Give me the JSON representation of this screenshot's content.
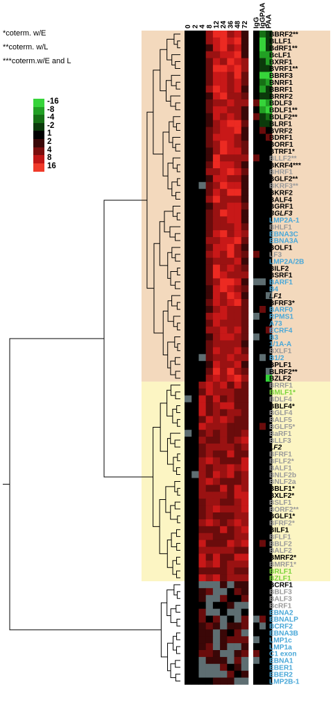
{
  "notes": [
    "*coterm. w/E",
    "**coterm. w/L",
    "***coterm.w/E and L"
  ],
  "legend": {
    "labels": [
      "-16",
      "-8",
      "-4",
      "-2",
      "1",
      "2",
      "4",
      "8",
      "16"
    ],
    "colors": [
      "#36d43a",
      "#22a024",
      "#167015",
      "#0b3a0b",
      "#000000",
      "#3a0707",
      "#7a0e0e",
      "#c01616",
      "#f03a2a"
    ]
  },
  "columns": {
    "timecourse": [
      "0",
      "2",
      "4",
      "8",
      "12",
      "24",
      "36",
      "48",
      "72"
    ],
    "extra": [
      "IgG",
      "IgGPAA",
      "PAA"
    ]
  },
  "colors": {
    "cluster_early_bg": "#f3d9bd",
    "cluster_late_bg": "#fcf5c3",
    "label_black": "#000000",
    "label_gray": "#9a9a9a",
    "label_blue": "#4aa8d8",
    "label_green": "#7ad43a"
  },
  "genes": [
    {
      "name": "BBRF2**",
      "color": "black",
      "italic": false
    },
    {
      "name": "BLLF1",
      "color": "black",
      "italic": false
    },
    {
      "name": "BdRF1**",
      "color": "black",
      "italic": false
    },
    {
      "name": "BcLF1",
      "color": "black",
      "italic": false
    },
    {
      "name": "BXRF1",
      "color": "black",
      "italic": false
    },
    {
      "name": "BVRF1**",
      "color": "black",
      "italic": false
    },
    {
      "name": "BBRF3",
      "color": "black",
      "italic": false
    },
    {
      "name": "BNRF1",
      "color": "black",
      "italic": false
    },
    {
      "name": "BBRF1",
      "color": "black",
      "italic": false
    },
    {
      "name": "BRRF2",
      "color": "black",
      "italic": false
    },
    {
      "name": "BDLF3",
      "color": "black",
      "italic": false
    },
    {
      "name": "BDLF1**",
      "color": "black",
      "italic": false
    },
    {
      "name": "BDLF2**",
      "color": "black",
      "italic": false
    },
    {
      "name": "BLRF1",
      "color": "black",
      "italic": false
    },
    {
      "name": "BVRF2",
      "color": "black",
      "italic": false
    },
    {
      "name": "BDRF1",
      "color": "black",
      "italic": false
    },
    {
      "name": "BORF1",
      "color": "black",
      "italic": false
    },
    {
      "name": "BTRF1*",
      "color": "black",
      "italic": false
    },
    {
      "name": "BLLF2**",
      "color": "gray",
      "italic": false
    },
    {
      "name": "BKRF4***",
      "color": "black",
      "italic": false
    },
    {
      "name": "BHRF1",
      "color": "gray",
      "italic": false
    },
    {
      "name": "BGLF2**",
      "color": "black",
      "italic": false
    },
    {
      "name": "BKRF3**",
      "color": "gray",
      "italic": false
    },
    {
      "name": "BKRF2",
      "color": "black",
      "italic": false
    },
    {
      "name": "BALF4",
      "color": "black",
      "italic": false
    },
    {
      "name": "BGRF1",
      "color": "black",
      "italic": false
    },
    {
      "name": "BGLF3",
      "color": "black",
      "italic": true
    },
    {
      "name": "LMP2A-1",
      "color": "blue",
      "italic": false
    },
    {
      "name": "BHLF1",
      "color": "gray",
      "italic": false
    },
    {
      "name": "EBNA3C",
      "color": "blue",
      "italic": false
    },
    {
      "name": "EBNA3A",
      "color": "blue",
      "italic": false
    },
    {
      "name": "BOLF1",
      "color": "black",
      "italic": false
    },
    {
      "name": "LF3",
      "color": "gray",
      "italic": false
    },
    {
      "name": "LMP2A/2B",
      "color": "blue",
      "italic": false
    },
    {
      "name": "BILF2",
      "color": "black",
      "italic": false
    },
    {
      "name": "BSRF1",
      "color": "black",
      "italic": false
    },
    {
      "name": "BARF1",
      "color": "blue",
      "italic": false
    },
    {
      "name": "B4",
      "color": "blue",
      "italic": false
    },
    {
      "name": "LF1",
      "color": "black",
      "italic": true
    },
    {
      "name": "BFRF3*",
      "color": "black",
      "italic": false
    },
    {
      "name": "BARF0",
      "color": "blue",
      "italic": false
    },
    {
      "name": "RPMS1",
      "color": "blue",
      "italic": false
    },
    {
      "name": "A73",
      "color": "blue",
      "italic": false
    },
    {
      "name": "ECRF4",
      "color": "blue",
      "italic": false
    },
    {
      "name": "B3",
      "color": "blue",
      "italic": false
    },
    {
      "name": "1/1A-A",
      "color": "blue",
      "italic": false
    },
    {
      "name": "BXLF1",
      "color": "gray",
      "italic": false
    },
    {
      "name": "B1/2",
      "color": "blue",
      "italic": false
    },
    {
      "name": "BPLF1",
      "color": "black",
      "italic": false
    },
    {
      "name": "BLRF2**",
      "color": "black",
      "italic": false
    },
    {
      "name": "BZLF2",
      "color": "black",
      "italic": false
    },
    {
      "name": "BRRF1",
      "color": "gray",
      "italic": false
    },
    {
      "name": "BMLF1*",
      "color": "green",
      "italic": false
    },
    {
      "name": "BDLF4",
      "color": "gray",
      "italic": false
    },
    {
      "name": "BBLF4*",
      "color": "black",
      "italic": false
    },
    {
      "name": "BGLF4",
      "color": "gray",
      "italic": false
    },
    {
      "name": "BALF5",
      "color": "gray",
      "italic": false
    },
    {
      "name": "BGLF5*",
      "color": "gray",
      "italic": false
    },
    {
      "name": "BaRF1",
      "color": "gray",
      "italic": false
    },
    {
      "name": "BLLF3",
      "color": "gray",
      "italic": false
    },
    {
      "name": "LF2",
      "color": "black",
      "italic": true
    },
    {
      "name": "BFRF1",
      "color": "gray",
      "italic": false
    },
    {
      "name": "BFLF2*",
      "color": "gray",
      "italic": false
    },
    {
      "name": "BALF1",
      "color": "gray",
      "italic": false
    },
    {
      "name": "BNLF2b",
      "color": "gray",
      "italic": false
    },
    {
      "name": "BNLF2a",
      "color": "gray",
      "italic": false
    },
    {
      "name": "BBLF1*",
      "color": "black",
      "italic": false
    },
    {
      "name": "BXLF2*",
      "color": "black",
      "italic": false
    },
    {
      "name": "BSLF1",
      "color": "gray",
      "italic": false
    },
    {
      "name": "BORF2**",
      "color": "gray",
      "italic": false
    },
    {
      "name": "BGLF1*",
      "color": "black",
      "italic": false
    },
    {
      "name": "BFRF2*",
      "color": "gray",
      "italic": false
    },
    {
      "name": "BILF1",
      "color": "black",
      "italic": false
    },
    {
      "name": "BFLF1",
      "color": "gray",
      "italic": false
    },
    {
      "name": "BBLF2",
      "color": "gray",
      "italic": false
    },
    {
      "name": "BALF2",
      "color": "gray",
      "italic": false
    },
    {
      "name": "BMRF2*",
      "color": "black",
      "italic": false
    },
    {
      "name": "BMRF1*",
      "color": "gray",
      "italic": false
    },
    {
      "name": "BRLF1",
      "color": "green",
      "italic": false
    },
    {
      "name": "BZLF1",
      "color": "green",
      "italic": false
    },
    {
      "name": "BCRF1",
      "color": "black",
      "italic": false
    },
    {
      "name": "BBLF3",
      "color": "gray",
      "italic": false
    },
    {
      "name": "BALF3",
      "color": "gray",
      "italic": false
    },
    {
      "name": "BcRF1",
      "color": "gray",
      "italic": false
    },
    {
      "name": "EBNA2",
      "color": "blue",
      "italic": false
    },
    {
      "name": "EBNALP",
      "color": "blue",
      "italic": false
    },
    {
      "name": "BCRF2",
      "color": "blue",
      "italic": false
    },
    {
      "name": "EBNA3B",
      "color": "blue",
      "italic": false
    },
    {
      "name": "LMP1c",
      "color": "blue",
      "italic": false
    },
    {
      "name": "LMP1a",
      "color": "blue",
      "italic": false
    },
    {
      "name": "C1 exon",
      "color": "blue",
      "italic": false
    },
    {
      "name": "EBNA1",
      "color": "blue",
      "italic": false
    },
    {
      "name": "EBER1",
      "color": "blue",
      "italic": false
    },
    {
      "name": "EBER2",
      "color": "blue",
      "italic": false
    },
    {
      "name": "LMP2B-1",
      "color": "blue",
      "italic": false
    }
  ]
}
